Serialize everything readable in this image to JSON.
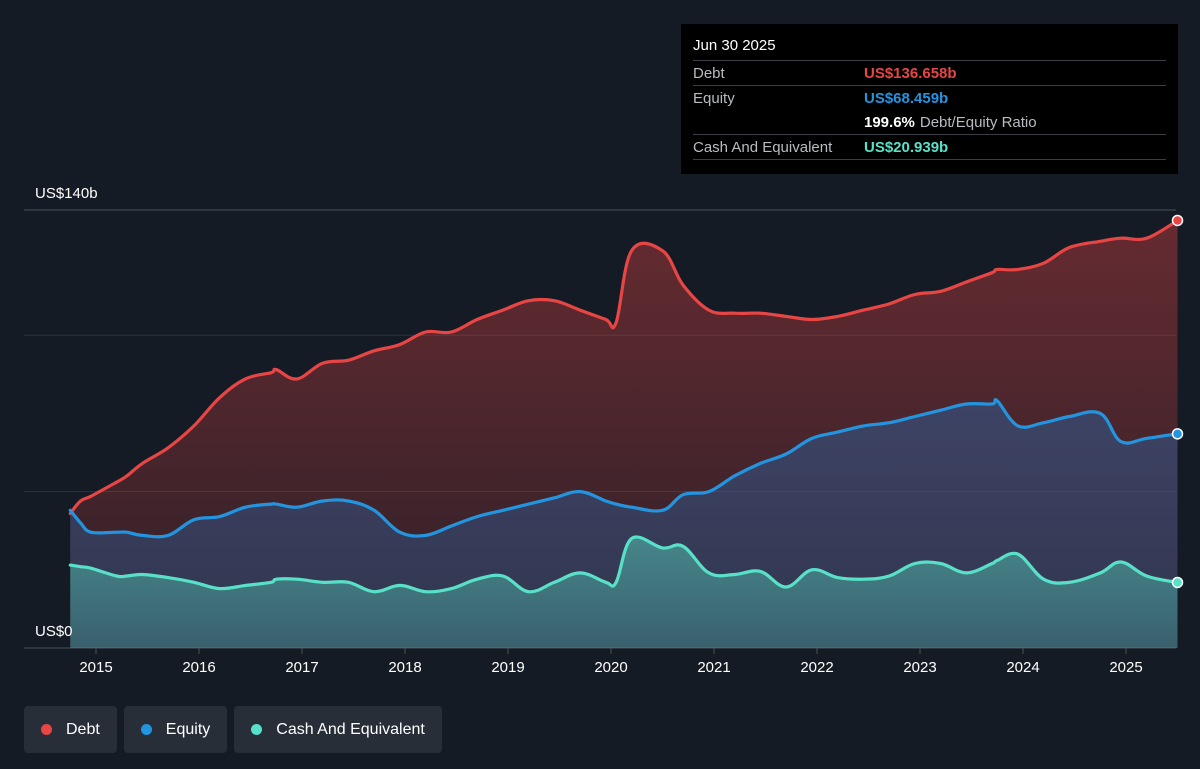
{
  "chart_data": {
    "type": "area",
    "y_top_label": "US$140b",
    "y_bottom_label": "US$0",
    "ylim": [
      0,
      140
    ],
    "x_ticks": [
      "2015",
      "2016",
      "2017",
      "2018",
      "2019",
      "2020",
      "2021",
      "2022",
      "2023",
      "2024",
      "2025"
    ],
    "x": [
      2014.75,
      2014.85,
      2014.95,
      2015.2,
      2015.3,
      2015.45,
      2015.7,
      2015.95,
      2016.2,
      2016.45,
      2016.7,
      2016.75,
      2016.95,
      2017.2,
      2017.45,
      2017.7,
      2017.95,
      2018.2,
      2018.45,
      2018.7,
      2018.95,
      2019.2,
      2019.45,
      2019.7,
      2019.95,
      2020.05,
      2020.2,
      2020.5,
      2020.7,
      2020.95,
      2021.2,
      2021.45,
      2021.7,
      2021.95,
      2022.2,
      2022.45,
      2022.7,
      2022.95,
      2023.2,
      2023.45,
      2023.7,
      2023.75,
      2023.95,
      2024.2,
      2024.45,
      2024.75,
      2024.95,
      2025.2,
      2025.5
    ],
    "series": [
      {
        "name": "Debt",
        "color": "#e84545",
        "values": [
          43,
          47,
          48.5,
          53,
          55,
          59,
          64,
          71,
          80,
          86,
          88,
          89,
          86,
          91,
          92,
          95,
          97,
          101,
          101,
          105,
          108,
          111,
          111,
          108,
          105,
          104,
          127,
          127,
          116,
          108,
          107,
          107,
          106,
          105,
          106,
          108,
          110,
          113,
          114,
          117,
          120,
          121,
          121,
          123,
          128,
          130,
          131,
          131,
          136.658
        ]
      },
      {
        "name": "Equity",
        "color": "#2394df",
        "values": [
          44,
          40,
          37,
          37,
          37,
          36,
          36,
          41,
          42,
          45,
          46,
          46,
          45,
          47,
          47,
          44,
          37,
          36,
          39,
          42,
          44,
          46,
          48,
          50,
          47,
          46,
          45,
          44,
          49,
          50,
          55,
          59,
          62,
          67,
          69,
          71,
          72,
          74,
          76,
          78,
          78,
          79,
          71,
          72,
          74,
          75,
          66,
          67,
          68.459
        ]
      },
      {
        "name": "Cash And Equivalent",
        "color": "#58e1c8",
        "values": [
          26.5,
          26,
          25.5,
          23,
          23,
          23.5,
          22.5,
          21,
          19,
          20,
          21,
          22,
          22,
          21,
          21,
          18,
          20,
          18,
          19,
          22,
          23,
          18,
          21,
          24,
          21,
          21,
          35,
          32,
          32.5,
          24,
          23.5,
          24.5,
          19.5,
          25,
          22.5,
          22,
          23,
          27,
          27,
          24,
          27,
          28,
          30,
          22,
          21,
          24,
          27.5,
          23,
          20.939
        ]
      }
    ]
  },
  "tooltip": {
    "date": "Jun 30 2025",
    "debt_label": "Debt",
    "debt_value": "US$136.658b",
    "equity_label": "Equity",
    "equity_value": "US$68.459b",
    "ratio_value": "199.6%",
    "ratio_label": "Debt/Equity Ratio",
    "cash_label": "Cash And Equivalent",
    "cash_value": "US$20.939b"
  },
  "legend": [
    {
      "label": "Debt",
      "color": "#e84545"
    },
    {
      "label": "Equity",
      "color": "#2394df"
    },
    {
      "label": "Cash And Equivalent",
      "color": "#58e1c8"
    }
  ]
}
